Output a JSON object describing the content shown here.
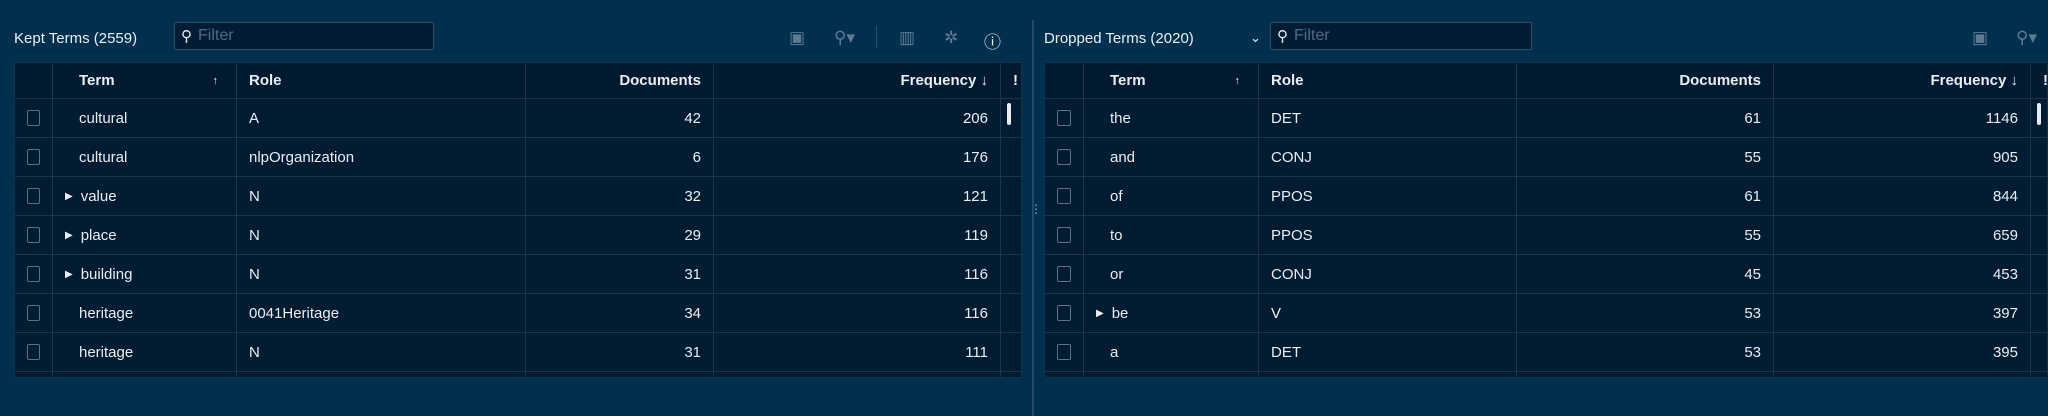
{
  "left": {
    "title": "Kept Terms (2559)",
    "filter_placeholder": "Filter",
    "columns": [
      "Term",
      "Role",
      "Documents",
      "Frequency ↓"
    ],
    "rows": [
      {
        "term": "cultural",
        "role": "A",
        "documents": "42",
        "frequency": "206",
        "expandable": false
      },
      {
        "term": "cultural",
        "role": "nlpOrganization",
        "documents": "6",
        "frequency": "176",
        "expandable": false
      },
      {
        "term": "value",
        "role": "N",
        "documents": "32",
        "frequency": "121",
        "expandable": true
      },
      {
        "term": "place",
        "role": "N",
        "documents": "29",
        "frequency": "119",
        "expandable": true
      },
      {
        "term": "building",
        "role": "N",
        "documents": "31",
        "frequency": "116",
        "expandable": true
      },
      {
        "term": "heritage",
        "role": "0041Heritage",
        "documents": "34",
        "frequency": "116",
        "expandable": false
      },
      {
        "term": "heritage",
        "role": "N",
        "documents": "31",
        "frequency": "111",
        "expandable": false
      }
    ]
  },
  "right": {
    "title": "Dropped Terms (2020)",
    "filter_placeholder": "Filter",
    "columns": [
      "Term",
      "Role",
      "Documents",
      "Frequency ↓"
    ],
    "rows": [
      {
        "term": "the",
        "role": "DET",
        "documents": "61",
        "frequency": "1146",
        "expandable": false
      },
      {
        "term": "and",
        "role": "CONJ",
        "documents": "55",
        "frequency": "905",
        "expandable": false
      },
      {
        "term": "of",
        "role": "PPOS",
        "documents": "61",
        "frequency": "844",
        "expandable": false
      },
      {
        "term": "to",
        "role": "PPOS",
        "documents": "55",
        "frequency": "659",
        "expandable": false
      },
      {
        "term": "or",
        "role": "CONJ",
        "documents": "45",
        "frequency": "453",
        "expandable": false
      },
      {
        "term": "be",
        "role": "V",
        "documents": "53",
        "frequency": "397",
        "expandable": true
      },
      {
        "term": "a",
        "role": "DET",
        "documents": "53",
        "frequency": "395",
        "expandable": false
      }
    ]
  }
}
